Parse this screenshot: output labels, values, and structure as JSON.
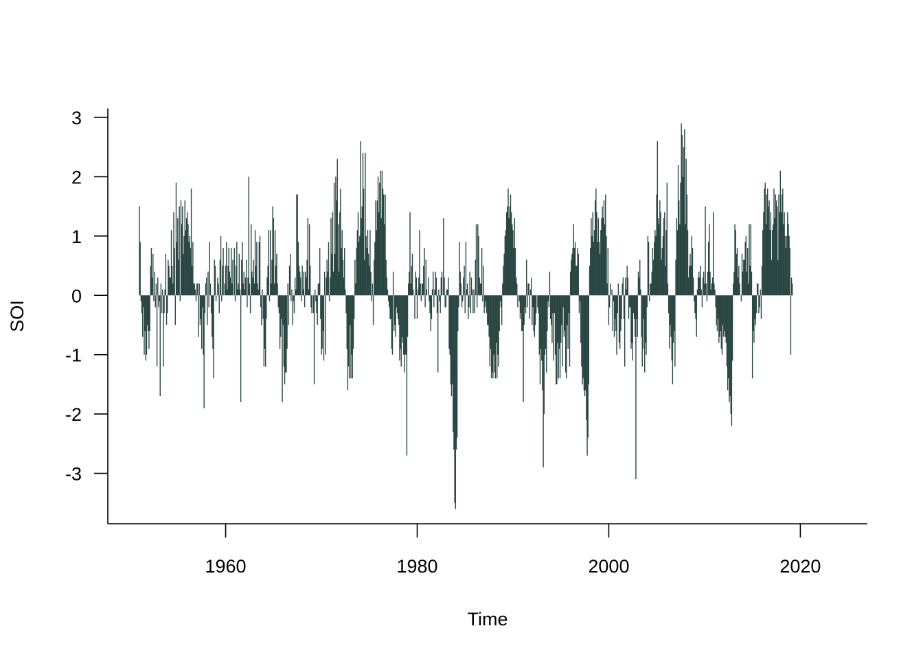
{
  "chart_data": {
    "type": "bar",
    "style": "vertical spikes from zero (R type='h')",
    "xlabel": "Time",
    "ylabel": "SOI",
    "xlim": [
      1947.7,
      2027.0
    ],
    "ylim": [
      -3.85,
      3.15
    ],
    "x_ticks": [
      1960,
      1980,
      2000,
      2020
    ],
    "x_tick_labels": [
      "1960",
      "1980",
      "2000",
      "2020"
    ],
    "y_ticks": [
      -3,
      -2,
      -1,
      0,
      1,
      2,
      3
    ],
    "y_tick_labels": [
      "-3",
      "-2",
      "-1",
      "0",
      "1",
      "2",
      "3"
    ],
    "grid": false,
    "legend": "none",
    "color": "#2a4643",
    "x_start": 1951.0,
    "x_step": 0.083333,
    "values": [
      1.5,
      0.9,
      -0.1,
      -0.3,
      -0.7,
      -0.2,
      -1.0,
      -0.6,
      -1.1,
      -1.0,
      -0.5,
      -0.6,
      -0.9,
      -0.6,
      0.5,
      0.8,
      0.3,
      0.7,
      -0.1,
      0.4,
      -0.2,
      0.2,
      -1.2,
      0.3,
      -0.2,
      -0.1,
      -1.7,
      0.2,
      -0.3,
      0.1,
      -1.2,
      -0.3,
      0.1,
      0.7,
      -0.5,
      -0.3,
      0.6,
      0.5,
      0.3,
      0.3,
      1.1,
      0.5,
      0.2,
      1.4,
      0.8,
      -0.5,
      1.9,
      0.9,
      1.3,
      0.6,
      1.5,
      -0.1,
      1.6,
      1.2,
      1.5,
      0.7,
      1.0,
      1.6,
      1.1,
      1.3,
      1.4,
      1.2,
      0.9,
      1.0,
      0.8,
      1.8,
      0.5,
      0.9,
      0.2,
      0.2,
      0.1,
      -0.1,
      0.2,
      0.2,
      -0.7,
      0.2,
      -0.5,
      -0.4,
      -0.9,
      -0.2,
      -1.0,
      -1.9,
      -0.3,
      0.2,
      0.3,
      -0.5,
      0.4,
      -0.2,
      0.9,
      0.2,
      -0.3,
      -0.7,
      -0.9,
      -1.4,
      0.6,
      0.5,
      -0.1,
      0.0,
      0.3,
      0.2,
      -0.3,
      0.6,
      1.0,
      -0.1,
      0.5,
      0.8,
      0.0,
      0.2,
      0.5,
      0.9,
      0.1,
      0.5,
      0.8,
      0.4,
      0.3,
      0.8,
      0.2,
      0.6,
      0.0,
      0.8,
      -0.1,
      0.5,
      0.9,
      0.1,
      0.2,
      0.7,
      0.1,
      -1.8,
      0.6,
      0.9,
      0.2,
      0.4,
      0.1,
      0.3,
      0.6,
      -0.2,
      0.3,
      2.0,
      0.2,
      -0.3,
      1.2,
      0.4,
      0.3,
      0.6,
      0.2,
      1.1,
      0.5,
      0.9,
      0.2,
      0.1,
      0.9,
      1.0,
      -0.2,
      -0.5,
      0.1,
      -0.4,
      -1.2,
      -0.9,
      -1.2,
      -0.4,
      0.3,
      0.5,
      1.1,
      -0.1,
      1.1,
      0.2,
      0.6,
      1.5,
      1.3,
      0.2,
      1.1,
      0.5,
      0.7,
      0.2,
      -0.2,
      -0.3,
      -0.9,
      -0.7,
      -0.4,
      -1.8,
      -0.5,
      -1.2,
      -1.5,
      -1.3,
      -1.3,
      -0.9,
      0.2,
      -0.5,
      0.5,
      0.7,
      -0.1,
      0.1,
      -0.5,
      -0.1,
      -0.3,
      0.3,
      0.1,
      1.7,
      1.7,
      0.9,
      0.5,
      0.4,
      0.3,
      -0.1,
      0.5,
      0.1,
      0.4,
      -0.2,
      0.4,
      0.3,
      0.6,
      1.3,
      0.1,
      1.2,
      0.5,
      -0.2,
      -0.3,
      0.0,
      -0.3,
      -1.5,
      0.1,
      -0.1,
      -0.3,
      -0.5,
      0.2,
      0.2,
      0.8,
      -0.4,
      -1.0,
      -0.9,
      -0.6,
      -1.1,
      0.4,
      -1.0,
      0.3,
      0.6,
      0.4,
      0.9,
      -0.1,
      0.3,
      1.3,
      0.7,
      1.4,
      0.4,
      1.9,
      0.7,
      2.0,
      1.6,
      2.3,
      1.2,
      0.4,
      1.4,
      1.8,
      0.8,
      1.1,
      0.6,
      0.3,
      0.8,
      0.1,
      -0.3,
      -0.9,
      -1.6,
      -1.2,
      -1.4,
      -0.5,
      -1.4,
      -1.0,
      -1.4,
      -0.9,
      -0.4,
      0.6,
      0.2,
      0.8,
      1.1,
      1.4,
      0.9,
      1.0,
      2.6,
      1.3,
      1.5,
      2.4,
      1.8,
      0.6,
      2.4,
      1.0,
      0.8,
      1.1,
      0.7,
      0.5,
      1.1,
      0.4,
      -0.1,
      0.2,
      -0.5,
      0.6,
      0.9,
      1.6,
      1.1,
      1.6,
      2.0,
      1.4,
      1.9,
      2.1,
      1.3,
      2.1,
      1.8,
      1.7,
      1.2,
      1.7,
      0.6,
      0.3,
      0.1,
      -0.1,
      -0.2,
      -0.4,
      -0.4,
      -0.9,
      -1.0,
      0.4,
      -0.6,
      -0.5,
      -0.7,
      -0.2,
      -0.3,
      -0.4,
      -0.5,
      -1.1,
      -0.9,
      -1.2,
      -0.7,
      -0.8,
      -1.0,
      -1.3,
      -1.0,
      -1.0,
      -2.7,
      -0.7,
      0.2,
      0.4,
      1.4,
      0.2,
      0.5,
      0.7,
      0.1,
      0.0,
      -0.4,
      0.4,
      0.3,
      -0.4,
      0.1,
      0.3,
      1.1,
      0.2,
      -0.1,
      0.2,
      0.2,
      0.5,
      0.8,
      -0.2,
      0.6,
      0.1,
      0.0,
      0.3,
      -0.1,
      -0.3,
      -0.6,
      -0.4,
      0.1,
      0.4,
      -0.2,
      0.1,
      0.4,
      0.3,
      -0.3,
      -1.3,
      0.1,
      -0.1,
      -0.3,
      0.3,
      0.4,
      0.0,
      1.3,
      0.3,
      -0.2,
      -0.2,
      0.1,
      0.1,
      0.3,
      -0.9,
      -1.0,
      -1.5,
      -1.7,
      -1.5,
      -2.3,
      -2.6,
      -3.5,
      -3.6,
      -2.6,
      -2.4,
      -0.6,
      -0.2,
      0.9,
      0.4,
      0.2,
      -0.2,
      -0.1,
      0.3,
      0.5,
      -0.3,
      0.9,
      0.1,
      0.2,
      -0.4,
      -0.2,
      0.4,
      -0.3,
      0.3,
      0.1,
      -0.3,
      0.1,
      -0.3,
      0.6,
      1.2,
      -0.2,
      1.2,
      1.0,
      0.3,
      0.2,
      0.2,
      0.8,
      -0.1,
      0.5,
      -0.3,
      -0.2,
      -0.1,
      -0.3,
      -0.5,
      -0.5,
      -0.7,
      -1.2,
      -0.9,
      -1.4,
      -1.3,
      -1.4,
      -1.0,
      -1.3,
      -1.4,
      -0.8,
      -1.4,
      -1.0,
      -1.2,
      -0.6,
      -0.1,
      -0.2,
      -0.5,
      0.2,
      0.5,
      0.7,
      1.0,
      1.1,
      1.4,
      1.5,
      1.8,
      1.3,
      1.5,
      1.7,
      1.4,
      1.2,
      1.1,
      0.8,
      1.3,
      0.8,
      0.3,
      0.2,
      -0.2,
      0.0,
      -0.1,
      -0.4,
      -0.3,
      -0.6,
      -0.6,
      -1.8,
      -0.5,
      -0.2,
      -0.3,
      0.6,
      -0.2,
      0.2,
      0.2,
      -0.4,
      0.1,
      0.3,
      -0.5,
      -0.2,
      -0.6,
      -0.7,
      -0.5,
      -0.3,
      0.0,
      -0.2,
      -0.3,
      -1.0,
      -1.5,
      -0.9,
      -1.1,
      -1.6,
      -2.9,
      -2.0,
      -1.0,
      -0.9,
      -1.3,
      -0.6,
      -0.1,
      -0.2,
      0.4,
      -0.4,
      -0.5,
      -0.8,
      -0.3,
      -1.1,
      -0.3,
      -1.0,
      -1.5,
      -1.5,
      -0.8,
      -1.4,
      -0.9,
      -1.4,
      -0.8,
      -0.5,
      -1.2,
      -0.2,
      -0.7,
      -0.6,
      -1.3,
      -1.4,
      -0.5,
      -0.9,
      -0.3,
      -1.2,
      0.4,
      0.6,
      0.7,
      0.8,
      1.2,
      0.8,
      0.9,
      0.5,
      0.5,
      0.8,
      0.7,
      -0.3,
      -0.1,
      -0.8,
      -1.2,
      -1.5,
      -1.4,
      -1.6,
      -1.7,
      -1.6,
      -2.1,
      -2.7,
      -2.4,
      -1.5,
      0.5,
      0.8,
      1.3,
      1.0,
      1.4,
      0.9,
      1.1,
      1.6,
      1.8,
      1.4,
      0.9,
      1.3,
      0.9,
      0.7,
      1.1,
      1.3,
      1.5,
      1.3,
      1.6,
      1.2,
      1.7,
      1.0,
      0.2,
      0.8,
      -0.5,
      -0.2,
      0.2,
      0.0,
      0.1,
      -0.6,
      -0.1,
      -0.7,
      -0.4,
      -0.6,
      -1.0,
      -0.3,
      0.2,
      -0.8,
      -0.9,
      -0.6,
      -0.4,
      0.2,
      0.3,
      -0.4,
      -1.2,
      0.3,
      0.1,
      0.5,
      0.3,
      -0.4,
      -0.2,
      -0.2,
      -0.9,
      -0.8,
      -1.1,
      -0.3,
      -0.4,
      -0.7,
      -3.1,
      -0.4,
      -0.7,
      0.4,
      0.3,
      0.6,
      0.1,
      -0.7,
      -1.2,
      -0.9,
      -0.4,
      -1.3,
      -0.8,
      -1.0,
      -0.2,
      1.0,
      0.9,
      -0.1,
      0.2,
      0.2,
      0.4,
      0.8,
      0.6,
      0.9,
      1.1,
      1.0,
      1.7,
      2.6,
      1.3,
      1.2,
      1.6,
      1.4,
      0.6,
      0.8,
      1.0,
      1.3,
      1.4,
      0.5,
      1.1,
      1.9,
      0.2,
      -0.3,
      -0.9,
      -0.5,
      -0.7,
      -1.1,
      -1.5,
      -0.8,
      -0.6,
      -1.2,
      0.6,
      1.3,
      1.1,
      2.2,
      1.6,
      1.2,
      1.9,
      2.9,
      2.7,
      2.0,
      2.5,
      2.8,
      1.2,
      2.3,
      1.7,
      1.1,
      0.3,
      0.5,
      0.7,
      0.5,
      1.0,
      0.8,
      0.3,
      -0.1,
      -0.3,
      -0.4,
      -0.7,
      0.1,
      0.3,
      0.4,
      0.3,
      0.5,
      0.1,
      -0.2,
      0.3,
      0.4,
      0.2,
      1.5,
      0.2,
      -0.1,
      0.4,
      0.9,
      1.2,
      0.4,
      0.1,
      0.2,
      0.3,
      1.4,
      0.2,
      0.1,
      -0.2,
      -0.5,
      -0.6,
      -0.4,
      -0.8,
      -0.7,
      -0.6,
      -0.9,
      -1.0,
      -0.5,
      -0.7,
      -0.6,
      -0.7,
      -0.8,
      -1.2,
      -1.6,
      -1.4,
      -1.8,
      -1.7,
      -2.0,
      -2.2,
      -1.1,
      0.2,
      0.4,
      1.2,
      1.1,
      0.7,
      0.8,
      0.3,
      0.5,
      0.2,
      0.0,
      -0.1,
      0.7,
      0.4,
      0.6,
      0.6,
      0.9,
      1.0,
      0.4,
      0.8,
      0.2,
      1.2,
      0.5,
      1.2,
      0.4,
      -1.4,
      -0.6,
      -0.8,
      -0.4,
      -0.5,
      -0.3,
      0.2,
      0.2,
      -0.3,
      -0.2,
      0.1,
      -0.4,
      0.5,
      1.1,
      1.4,
      1.8,
      1.9,
      1.2,
      1.7,
      1.8,
      1.5,
      1.6,
      1.1,
      1.4,
      0.6,
      1.1,
      1.2,
      1.8,
      1.3,
      1.7,
      1.6,
      1.5,
      0.6,
      1.7,
      1.4,
      2.1,
      1.4,
      1.7,
      1.8,
      1.2,
      1.4,
      1.0,
      0.8,
      1.0,
      1.4,
      1.2,
      1.0,
      0.8,
      -1.0,
      0.3,
      0.2
    ]
  }
}
